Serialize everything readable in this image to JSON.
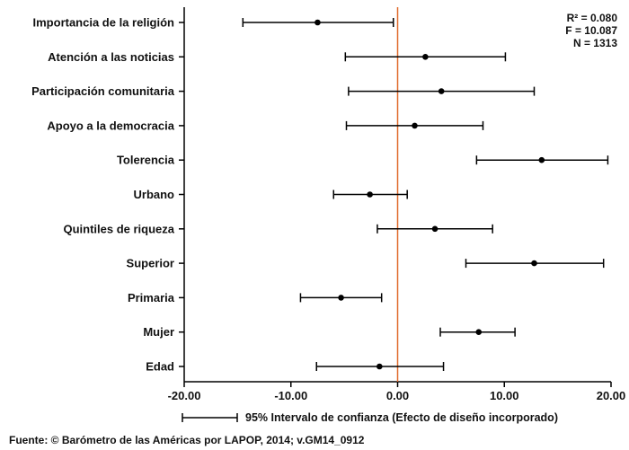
{
  "chart_data": {
    "type": "scatter",
    "subtype": "coefficient-plot",
    "colors": {
      "reference_line": "#e06a2c",
      "marks": "#000000"
    },
    "xlim": [
      -20,
      20
    ],
    "x_ticks": [
      -20,
      -10,
      0,
      10,
      20
    ],
    "x_tick_labels": [
      "-20.00",
      "-10.00",
      "0.00",
      "10.00",
      "20.00"
    ],
    "reference_x": 0,
    "rows": [
      {
        "label": "Importancia de la religión",
        "coef": -7.5,
        "ci_low": -14.5,
        "ci_high": -0.4
      },
      {
        "label": "Atención a las noticias",
        "coef": 2.6,
        "ci_low": -4.9,
        "ci_high": 10.1
      },
      {
        "label": "Participación comunitaria",
        "coef": 4.1,
        "ci_low": -4.6,
        "ci_high": 12.8
      },
      {
        "label": "Apoyo a la democracia",
        "coef": 1.6,
        "ci_low": -4.8,
        "ci_high": 8.0
      },
      {
        "label": "Tolerencia",
        "coef": 13.5,
        "ci_low": 7.4,
        "ci_high": 19.7
      },
      {
        "label": "Urbano",
        "coef": -2.6,
        "ci_low": -6.0,
        "ci_high": 0.9
      },
      {
        "label": "Quintiles de riqueza",
        "coef": 3.5,
        "ci_low": -1.9,
        "ci_high": 8.9
      },
      {
        "label": "Superior",
        "coef": 12.8,
        "ci_low": 6.4,
        "ci_high": 19.3
      },
      {
        "label": "Primaria",
        "coef": -5.3,
        "ci_low": -9.1,
        "ci_high": -1.5
      },
      {
        "label": "Mujer",
        "coef": 7.6,
        "ci_low": 4.0,
        "ci_high": 11.0
      },
      {
        "label": "Edad",
        "coef": -1.7,
        "ci_low": -7.6,
        "ci_high": 4.3
      }
    ],
    "stats": {
      "r2": "R² = 0.080",
      "f": "F = 10.087",
      "n": "N = 1313"
    },
    "legend": "95% Intervalo de confianza (Efecto de diseño incorporado)",
    "source": "Fuente: © Barómetro de las Américas por LAPOP, 2014; v.GM14_0912"
  }
}
